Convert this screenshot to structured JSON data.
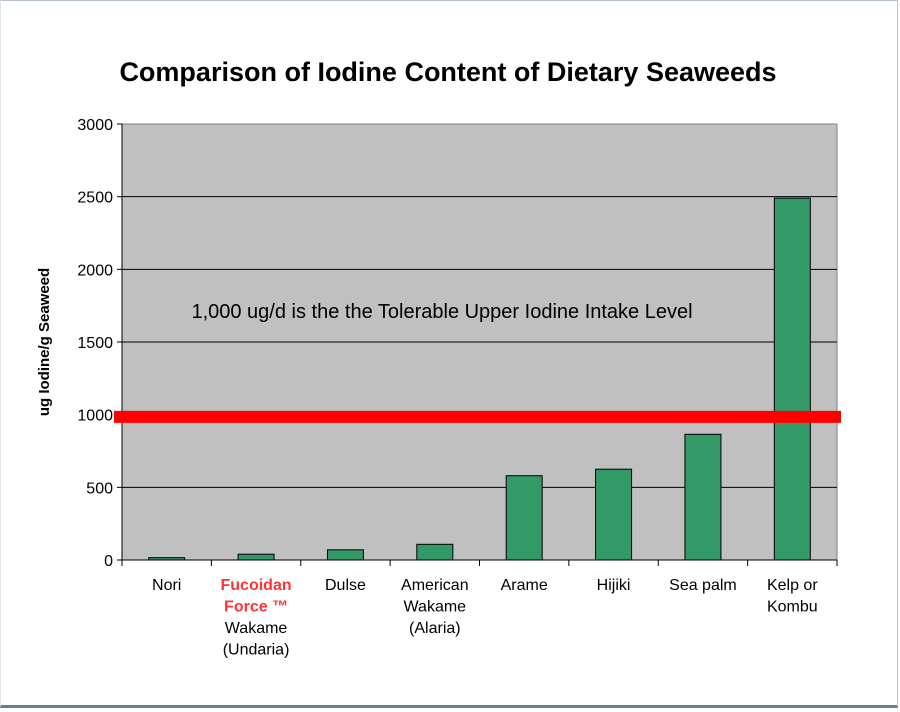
{
  "chart_data": {
    "type": "bar",
    "title": "Comparison of Iodine Content of Dietary Seaweeds",
    "ylabel": "ug Iodine/g Seaweed",
    "xlabel": "",
    "ylim": [
      0,
      3000
    ],
    "yticks": [
      0,
      500,
      1000,
      1500,
      2000,
      2500,
      3000
    ],
    "grid": true,
    "categories": [
      {
        "lines": [
          "Nori"
        ],
        "highlight_lines": []
      },
      {
        "lines": [
          "Fucoidan",
          "Force ™",
          "Wakame",
          "(Undaria)"
        ],
        "highlight_lines": [
          0,
          1
        ]
      },
      {
        "lines": [
          "Dulse"
        ],
        "highlight_lines": []
      },
      {
        "lines": [
          "American",
          "Wakame",
          "(Alaria)"
        ],
        "highlight_lines": []
      },
      {
        "lines": [
          "Arame"
        ],
        "highlight_lines": []
      },
      {
        "lines": [
          "Hijiki"
        ],
        "highlight_lines": []
      },
      {
        "lines": [
          "Sea palm"
        ],
        "highlight_lines": []
      },
      {
        "lines": [
          "Kelp or",
          "Kombu"
        ],
        "highlight_lines": []
      }
    ],
    "values": [
      16,
      40,
      70,
      108,
      580,
      625,
      865,
      2490
    ],
    "reference_line": {
      "value": 985,
      "label": "1,000 ug/d is the the Tolerable Upper Iodine Intake Level",
      "color": "#ff0000"
    },
    "colors": {
      "bar": "#339966",
      "plot_bg": "#c0c0c0",
      "highlight_text": "#ff3333",
      "text": "#000000"
    }
  }
}
